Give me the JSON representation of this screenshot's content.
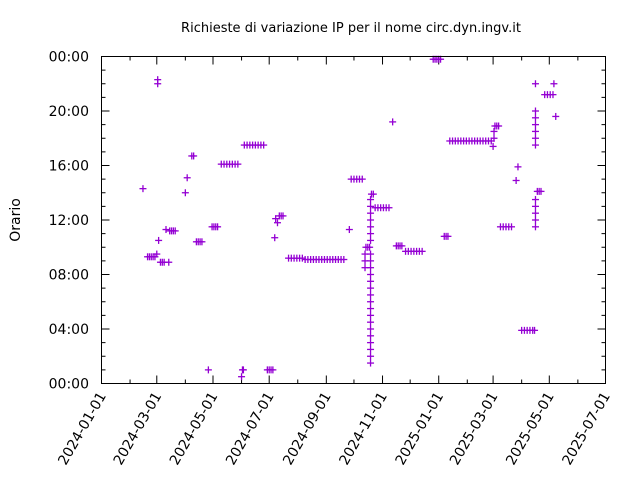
{
  "chart_data": {
    "type": "scatter",
    "title": "Richieste di variazione IP per il nome circ.dyn.ingv.it",
    "xlabel": "",
    "ylabel": "Orario",
    "x_tick_labels": [
      "2024-01-01",
      "2024-03-01",
      "2024-05-01",
      "2024-07-01",
      "2024-09-01",
      "2024-11-01",
      "2025-01-01",
      "2025-03-01",
      "2025-05-01",
      "2025-07-01"
    ],
    "y_tick_labels": [
      "00:00",
      "04:00",
      "08:00",
      "12:00",
      "16:00",
      "20:00",
      "00:00"
    ],
    "xlim": [
      "2024-01-01",
      "2025-07-01"
    ],
    "ylim_hours": [
      0,
      24
    ],
    "grid": false,
    "marker_color": "#9400d3",
    "points": [
      {
        "x": "2024-02-15",
        "y": 14.3
      },
      {
        "x": "2024-02-20",
        "y": 9.3
      },
      {
        "x": "2024-02-22",
        "y": 9.3
      },
      {
        "x": "2024-02-24",
        "y": 9.3
      },
      {
        "x": "2024-02-26",
        "y": 9.3
      },
      {
        "x": "2024-02-28",
        "y": 9.3
      },
      {
        "x": "2024-03-01",
        "y": 9.5
      },
      {
        "x": "2024-03-02",
        "y": 22.3
      },
      {
        "x": "2024-03-02",
        "y": 22.0
      },
      {
        "x": "2024-03-03",
        "y": 10.5
      },
      {
        "x": "2024-03-05",
        "y": 8.9
      },
      {
        "x": "2024-03-07",
        "y": 8.9
      },
      {
        "x": "2024-03-09",
        "y": 8.9
      },
      {
        "x": "2024-03-11",
        "y": 11.3
      },
      {
        "x": "2024-03-14",
        "y": 8.9
      },
      {
        "x": "2024-03-15",
        "y": 11.2
      },
      {
        "x": "2024-03-17",
        "y": 11.2
      },
      {
        "x": "2024-03-19",
        "y": 11.2
      },
      {
        "x": "2024-03-21",
        "y": 11.2
      },
      {
        "x": "2024-04-01",
        "y": 14.0
      },
      {
        "x": "2024-04-03",
        "y": 15.1
      },
      {
        "x": "2024-04-08",
        "y": 16.7
      },
      {
        "x": "2024-04-10",
        "y": 16.7
      },
      {
        "x": "2024-04-13",
        "y": 10.4
      },
      {
        "x": "2024-04-15",
        "y": 10.4
      },
      {
        "x": "2024-04-17",
        "y": 10.4
      },
      {
        "x": "2024-04-19",
        "y": 10.4
      },
      {
        "x": "2024-04-26",
        "y": 1.0
      },
      {
        "x": "2024-04-30",
        "y": 11.5
      },
      {
        "x": "2024-05-02",
        "y": 11.5
      },
      {
        "x": "2024-05-04",
        "y": 11.5
      },
      {
        "x": "2024-05-06",
        "y": 11.5
      },
      {
        "x": "2024-05-10",
        "y": 16.1
      },
      {
        "x": "2024-05-13",
        "y": 16.1
      },
      {
        "x": "2024-05-16",
        "y": 16.1
      },
      {
        "x": "2024-05-19",
        "y": 16.1
      },
      {
        "x": "2024-05-22",
        "y": 16.1
      },
      {
        "x": "2024-05-25",
        "y": 16.1
      },
      {
        "x": "2024-05-28",
        "y": 16.1
      },
      {
        "x": "2024-06-01",
        "y": 0.5
      },
      {
        "x": "2024-06-02",
        "y": 1.0
      },
      {
        "x": "2024-06-03",
        "y": 1.0
      },
      {
        "x": "2024-06-04",
        "y": 17.5
      },
      {
        "x": "2024-06-07",
        "y": 17.5
      },
      {
        "x": "2024-06-10",
        "y": 17.5
      },
      {
        "x": "2024-06-13",
        "y": 17.5
      },
      {
        "x": "2024-06-16",
        "y": 17.5
      },
      {
        "x": "2024-06-19",
        "y": 17.5
      },
      {
        "x": "2024-06-22",
        "y": 17.5
      },
      {
        "x": "2024-06-25",
        "y": 17.5
      },
      {
        "x": "2024-06-29",
        "y": 1.0
      },
      {
        "x": "2024-07-01",
        "y": 1.0
      },
      {
        "x": "2024-07-03",
        "y": 1.0
      },
      {
        "x": "2024-07-05",
        "y": 1.0
      },
      {
        "x": "2024-07-07",
        "y": 10.7
      },
      {
        "x": "2024-07-08",
        "y": 12.1
      },
      {
        "x": "2024-07-10",
        "y": 11.8
      },
      {
        "x": "2024-07-12",
        "y": 12.3
      },
      {
        "x": "2024-07-14",
        "y": 12.3
      },
      {
        "x": "2024-07-16",
        "y": 12.3
      },
      {
        "x": "2024-07-22",
        "y": 9.2
      },
      {
        "x": "2024-07-25",
        "y": 9.2
      },
      {
        "x": "2024-07-28",
        "y": 9.2
      },
      {
        "x": "2024-07-31",
        "y": 9.2
      },
      {
        "x": "2024-08-03",
        "y": 9.2
      },
      {
        "x": "2024-08-06",
        "y": 9.2
      },
      {
        "x": "2024-08-09",
        "y": 9.1
      },
      {
        "x": "2024-08-12",
        "y": 9.1
      },
      {
        "x": "2024-08-15",
        "y": 9.1
      },
      {
        "x": "2024-08-18",
        "y": 9.1
      },
      {
        "x": "2024-08-21",
        "y": 9.1
      },
      {
        "x": "2024-08-24",
        "y": 9.1
      },
      {
        "x": "2024-08-27",
        "y": 9.1
      },
      {
        "x": "2024-08-30",
        "y": 9.1
      },
      {
        "x": "2024-09-02",
        "y": 9.1
      },
      {
        "x": "2024-09-05",
        "y": 9.1
      },
      {
        "x": "2024-09-08",
        "y": 9.1
      },
      {
        "x": "2024-09-11",
        "y": 9.1
      },
      {
        "x": "2024-09-14",
        "y": 9.1
      },
      {
        "x": "2024-09-17",
        "y": 9.1
      },
      {
        "x": "2024-09-20",
        "y": 9.1
      },
      {
        "x": "2024-09-26",
        "y": 11.3
      },
      {
        "x": "2024-09-28",
        "y": 15.0
      },
      {
        "x": "2024-10-01",
        "y": 15.0
      },
      {
        "x": "2024-10-04",
        "y": 15.0
      },
      {
        "x": "2024-10-07",
        "y": 15.0
      },
      {
        "x": "2024-10-10",
        "y": 15.0
      },
      {
        "x": "2024-10-13",
        "y": 8.5
      },
      {
        "x": "2024-10-13",
        "y": 9.0
      },
      {
        "x": "2024-10-13",
        "y": 9.5
      },
      {
        "x": "2024-10-14",
        "y": 10.0
      },
      {
        "x": "2024-10-16",
        "y": 10.0
      },
      {
        "x": "2024-10-18",
        "y": 10.0
      },
      {
        "x": "2024-10-19",
        "y": 11.5
      },
      {
        "x": "2024-10-19",
        "y": 1.5
      },
      {
        "x": "2024-10-19",
        "y": 2.0
      },
      {
        "x": "2024-10-19",
        "y": 2.5
      },
      {
        "x": "2024-10-19",
        "y": 3.0
      },
      {
        "x": "2024-10-19",
        "y": 3.5
      },
      {
        "x": "2024-10-19",
        "y": 4.0
      },
      {
        "x": "2024-10-19",
        "y": 4.5
      },
      {
        "x": "2024-10-19",
        "y": 5.0
      },
      {
        "x": "2024-10-19",
        "y": 5.5
      },
      {
        "x": "2024-10-19",
        "y": 6.0
      },
      {
        "x": "2024-10-19",
        "y": 6.5
      },
      {
        "x": "2024-10-19",
        "y": 7.0
      },
      {
        "x": "2024-10-19",
        "y": 7.5
      },
      {
        "x": "2024-10-19",
        "y": 8.0
      },
      {
        "x": "2024-10-19",
        "y": 8.5
      },
      {
        "x": "2024-10-19",
        "y": 9.0
      },
      {
        "x": "2024-10-19",
        "y": 9.5
      },
      {
        "x": "2024-10-19",
        "y": 10.5
      },
      {
        "x": "2024-10-19",
        "y": 11.0
      },
      {
        "x": "2024-10-19",
        "y": 12.0
      },
      {
        "x": "2024-10-19",
        "y": 12.5
      },
      {
        "x": "2024-10-19",
        "y": 13.0
      },
      {
        "x": "2024-10-19",
        "y": 13.5
      },
      {
        "x": "2024-10-20",
        "y": 13.9
      },
      {
        "x": "2024-10-22",
        "y": 13.9
      },
      {
        "x": "2024-10-24",
        "y": 12.9
      },
      {
        "x": "2024-10-27",
        "y": 12.9
      },
      {
        "x": "2024-10-30",
        "y": 12.9
      },
      {
        "x": "2024-11-02",
        "y": 12.9
      },
      {
        "x": "2024-11-05",
        "y": 12.9
      },
      {
        "x": "2024-11-08",
        "y": 12.9
      },
      {
        "x": "2024-11-12",
        "y": 19.2
      },
      {
        "x": "2024-11-16",
        "y": 10.1
      },
      {
        "x": "2024-11-18",
        "y": 10.1
      },
      {
        "x": "2024-11-20",
        "y": 10.1
      },
      {
        "x": "2024-11-22",
        "y": 10.1
      },
      {
        "x": "2024-11-26",
        "y": 9.7
      },
      {
        "x": "2024-11-29",
        "y": 9.7
      },
      {
        "x": "2024-12-02",
        "y": 9.7
      },
      {
        "x": "2024-12-05",
        "y": 9.7
      },
      {
        "x": "2024-12-08",
        "y": 9.7
      },
      {
        "x": "2024-12-11",
        "y": 9.7
      },
      {
        "x": "2024-12-14",
        "y": 9.7
      },
      {
        "x": "2024-12-26",
        "y": 23.8
      },
      {
        "x": "2024-12-28",
        "y": 23.8
      },
      {
        "x": "2024-12-30",
        "y": 23.8
      },
      {
        "x": "2025-01-01",
        "y": 23.8
      },
      {
        "x": "2025-01-03",
        "y": 23.8
      },
      {
        "x": "2025-01-07",
        "y": 10.8
      },
      {
        "x": "2025-01-09",
        "y": 10.8
      },
      {
        "x": "2025-01-11",
        "y": 10.8
      },
      {
        "x": "2025-01-13",
        "y": 17.8
      },
      {
        "x": "2025-01-16",
        "y": 17.8
      },
      {
        "x": "2025-01-19",
        "y": 17.8
      },
      {
        "x": "2025-01-22",
        "y": 17.8
      },
      {
        "x": "2025-01-25",
        "y": 17.8
      },
      {
        "x": "2025-01-28",
        "y": 17.8
      },
      {
        "x": "2025-01-31",
        "y": 17.8
      },
      {
        "x": "2025-02-03",
        "y": 17.8
      },
      {
        "x": "2025-02-06",
        "y": 17.8
      },
      {
        "x": "2025-02-09",
        "y": 17.8
      },
      {
        "x": "2025-02-12",
        "y": 17.8
      },
      {
        "x": "2025-02-15",
        "y": 17.8
      },
      {
        "x": "2025-02-18",
        "y": 17.8
      },
      {
        "x": "2025-02-21",
        "y": 17.8
      },
      {
        "x": "2025-02-24",
        "y": 17.8
      },
      {
        "x": "2025-02-27",
        "y": 17.8
      },
      {
        "x": "2025-03-01",
        "y": 17.4
      },
      {
        "x": "2025-03-02",
        "y": 18.0
      },
      {
        "x": "2025-03-02",
        "y": 18.5
      },
      {
        "x": "2025-03-03",
        "y": 18.9
      },
      {
        "x": "2025-03-05",
        "y": 18.9
      },
      {
        "x": "2025-03-07",
        "y": 18.9
      },
      {
        "x": "2025-03-09",
        "y": 11.5
      },
      {
        "x": "2025-03-12",
        "y": 11.5
      },
      {
        "x": "2025-03-15",
        "y": 11.5
      },
      {
        "x": "2025-03-18",
        "y": 11.5
      },
      {
        "x": "2025-03-21",
        "y": 11.5
      },
      {
        "x": "2025-03-26",
        "y": 14.9
      },
      {
        "x": "2025-03-28",
        "y": 15.9
      },
      {
        "x": "2025-04-01",
        "y": 3.9
      },
      {
        "x": "2025-04-04",
        "y": 3.9
      },
      {
        "x": "2025-04-07",
        "y": 3.9
      },
      {
        "x": "2025-04-10",
        "y": 3.9
      },
      {
        "x": "2025-04-13",
        "y": 3.9
      },
      {
        "x": "2025-04-15",
        "y": 3.9
      },
      {
        "x": "2025-04-16",
        "y": 11.5
      },
      {
        "x": "2025-04-16",
        "y": 12.0
      },
      {
        "x": "2025-04-16",
        "y": 12.5
      },
      {
        "x": "2025-04-16",
        "y": 13.0
      },
      {
        "x": "2025-04-16",
        "y": 13.5
      },
      {
        "x": "2025-04-16",
        "y": 17.5
      },
      {
        "x": "2025-04-16",
        "y": 18.0
      },
      {
        "x": "2025-04-16",
        "y": 18.5
      },
      {
        "x": "2025-04-16",
        "y": 19.0
      },
      {
        "x": "2025-04-16",
        "y": 19.5
      },
      {
        "x": "2025-04-16",
        "y": 20.0
      },
      {
        "x": "2025-04-16",
        "y": 22.0
      },
      {
        "x": "2025-04-18",
        "y": 14.1
      },
      {
        "x": "2025-04-20",
        "y": 14.1
      },
      {
        "x": "2025-04-22",
        "y": 14.1
      },
      {
        "x": "2025-04-26",
        "y": 21.2
      },
      {
        "x": "2025-04-29",
        "y": 21.2
      },
      {
        "x": "2025-05-02",
        "y": 21.2
      },
      {
        "x": "2025-05-05",
        "y": 21.2
      },
      {
        "x": "2025-05-06",
        "y": 22.0
      },
      {
        "x": "2025-05-08",
        "y": 19.6
      }
    ]
  }
}
